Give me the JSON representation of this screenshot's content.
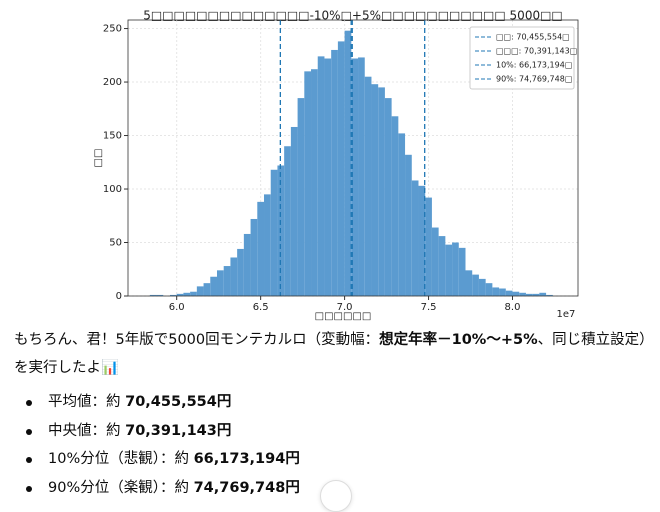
{
  "chart_data": {
    "type": "histogram",
    "title": "5□□□□□□□□□□□□□□-10%□+5%□□□□□□□□□□□ 5000□□",
    "x_label": "□□□□□□",
    "y_label": "□□",
    "x_offset_label": "1e7",
    "bins": [
      5.84,
      5.88,
      5.92,
      5.96,
      6.0,
      6.04,
      6.08,
      6.12,
      6.16,
      6.2,
      6.24,
      6.28,
      6.32,
      6.36,
      6.4,
      6.44,
      6.48,
      6.52,
      6.56,
      6.6,
      6.64,
      6.68,
      6.72,
      6.76,
      6.8,
      6.84,
      6.88,
      6.92,
      6.96,
      7.0,
      7.04,
      7.08,
      7.12,
      7.16,
      7.2,
      7.24,
      7.28,
      7.32,
      7.36,
      7.4,
      7.44,
      7.48,
      7.52,
      7.56,
      7.6,
      7.64,
      7.68,
      7.72,
      7.76,
      7.8,
      7.84,
      7.88,
      7.92,
      7.96,
      8.0,
      8.04,
      8.08,
      8.12,
      8.16,
      8.2,
      8.24
    ],
    "values": [
      1,
      1,
      0,
      1,
      2,
      3,
      4,
      9,
      12,
      18,
      24,
      28,
      36,
      44,
      58,
      72,
      88,
      95,
      118,
      122,
      140,
      158,
      185,
      210,
      212,
      224,
      222,
      230,
      238,
      248,
      222,
      223,
      205,
      198,
      195,
      185,
      168,
      152,
      132,
      108,
      103,
      92,
      64,
      56,
      48,
      50,
      45,
      24,
      20,
      16,
      12,
      8,
      7,
      5,
      4,
      3,
      2,
      2,
      3,
      1
    ],
    "color": "#5b9bd0",
    "vlines": [
      {
        "name": "□□: 70,455,554□",
        "value": 7.0455554
      },
      {
        "name": "□□□: 70,391,143□",
        "value": 7.0391143
      },
      {
        "name": "10%: 66,173,194□",
        "value": 6.6173194
      },
      {
        "name": "90%: 74,769,748□",
        "value": 7.4769748
      }
    ],
    "vline_color": "#1f77b4",
    "legend": "upper right",
    "grid": true,
    "xlim": [
      5.71,
      8.39
    ],
    "ylim": [
      0,
      258
    ],
    "xticks": [
      {
        "value": 6,
        "label": "6.0"
      },
      6.5,
      {
        "value": 7,
        "label": "7.0"
      },
      7.5,
      {
        "value": 8,
        "label": "8.0"
      }
    ],
    "yticks": [
      0,
      50,
      100,
      150,
      200,
      250
    ]
  },
  "message": {
    "intro": [
      "もちろん、君！5年版で5000回モンテカルロ（変動幅：",
      "想定年率－10%～+5%",
      "、同じ積立設定）を実行したよ",
      "📊"
    ],
    "bullets": [
      {
        "label": "平均値：約 ",
        "value": "70,455,554円"
      },
      {
        "label": "中央値：約 ",
        "value": "70,391,143円"
      },
      {
        "label": "10%分位（悲観）：約 ",
        "value": "66,173,194円"
      },
      {
        "label": "90%分位（楽観）：約 ",
        "value": "74,769,748円"
      }
    ]
  }
}
